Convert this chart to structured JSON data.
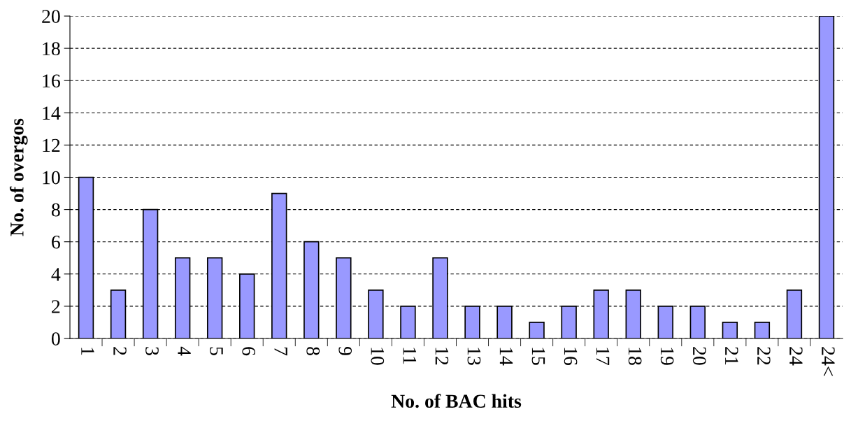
{
  "chart_data": {
    "type": "bar",
    "xlabel": "No. of BAC hits",
    "ylabel": "No. of overgos",
    "categories": [
      "1",
      "2",
      "3",
      "4",
      "5",
      "6",
      "7",
      "8",
      "9",
      "10",
      "11",
      "12",
      "13",
      "14",
      "15",
      "16",
      "17",
      "18",
      "19",
      "20",
      "21",
      "22",
      "24",
      "24<"
    ],
    "values": [
      10,
      3,
      8,
      5,
      5,
      4,
      9,
      6,
      5,
      3,
      2,
      5,
      2,
      2,
      1,
      2,
      3,
      3,
      2,
      2,
      1,
      1,
      3,
      20
    ],
    "color": "#9999ff",
    "ylim": [
      0,
      20
    ],
    "yticks": [
      0,
      2,
      4,
      6,
      8,
      10,
      12,
      14,
      16,
      18,
      20
    ],
    "grid": "y",
    "legend": false
  }
}
